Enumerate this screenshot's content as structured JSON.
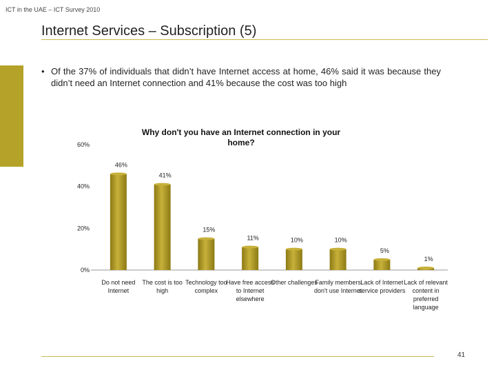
{
  "header": {
    "caption": "ICT in the UAE – ICT Survey 2010"
  },
  "slide": {
    "title": "Internet Services – Subscription (5)",
    "bullet_symbol": "•",
    "bullet": "Of the 37% of individuals that didn’t have Internet access at home, 46% said it was because they didn’t need an Internet connection and 41% because the cost was too high",
    "page_number": "41"
  },
  "colors": {
    "accent": "#b5a228",
    "bar": "#a38f1c",
    "bar_light": "#c7b13a",
    "rule": "#c8b84a"
  },
  "chart_data": {
    "type": "bar",
    "title": "Why don't you have an Internet connection in your home?",
    "categories": [
      "Do not need Internet",
      "The cost is too high",
      "Technology too complex",
      "Have free access to Internet elsewhere",
      "Other challenges",
      "Family members don't use Internet",
      "Lack of Internet service providers",
      "Lack of relevant content in preferred language"
    ],
    "values": [
      46,
      41,
      15,
      11,
      10,
      10,
      5,
      1
    ],
    "data_labels": [
      "46%",
      "41%",
      "15%",
      "11%",
      "10%",
      "10%",
      "5%",
      "1%"
    ],
    "ylim": [
      0,
      60
    ],
    "y_ticks": [
      0,
      20,
      40,
      60
    ],
    "y_tick_labels": [
      "0%",
      "20%",
      "40%",
      "60%"
    ],
    "xlabel": "",
    "ylabel": "",
    "grid": false,
    "legend": "none"
  }
}
